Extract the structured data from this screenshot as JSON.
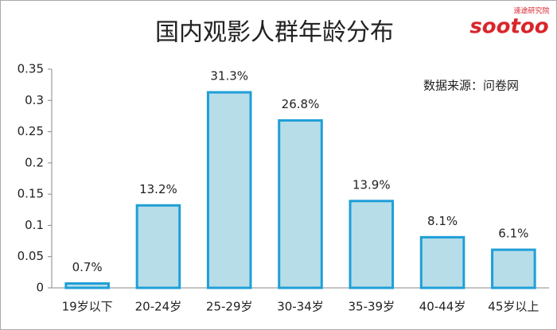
{
  "chart_data": {
    "type": "bar",
    "title": "国内观影人群年龄分布",
    "annotation": "数据来源：问卷网",
    "logo": {
      "brand": "sootoo",
      "name": "速途研究院"
    },
    "categories": [
      "19岁以下",
      "20-24岁",
      "25-29岁",
      "30-34岁",
      "35-39岁",
      "40-44岁",
      "45岁以上"
    ],
    "values": [
      0.007,
      0.132,
      0.313,
      0.268,
      0.139,
      0.081,
      0.061
    ],
    "value_labels": [
      "0.7%",
      "13.2%",
      "31.3%",
      "26.8%",
      "13.9%",
      "8.1%",
      "6.1%"
    ],
    "color": "#b7dde8",
    "edge_color": "#1f9fd8",
    "ylim": [
      0,
      0.35
    ],
    "yticks": [
      0,
      0.05,
      0.1,
      0.15,
      0.2,
      0.25,
      0.3,
      0.35
    ],
    "grid": false
  }
}
